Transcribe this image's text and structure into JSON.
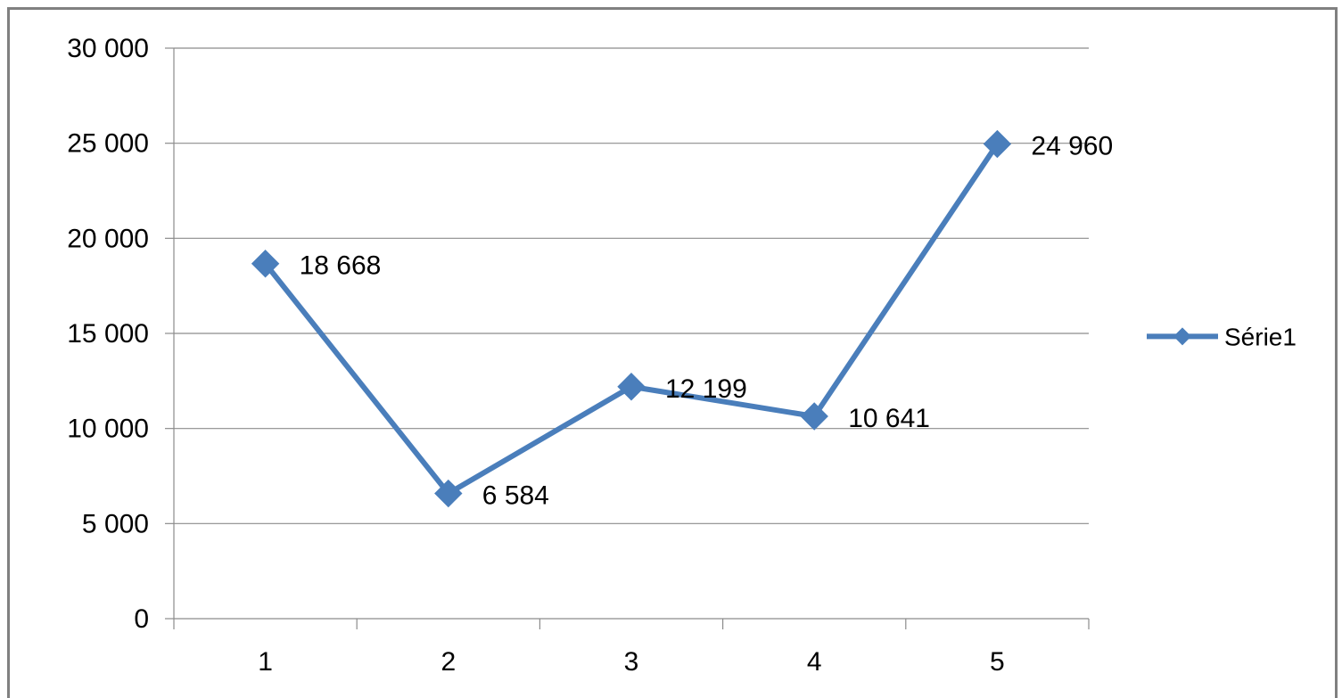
{
  "chart_data": {
    "type": "line",
    "title": "",
    "xlabel": "",
    "ylabel": "",
    "categories": [
      "1",
      "2",
      "3",
      "4",
      "5"
    ],
    "series": [
      {
        "name": "Série1",
        "values": [
          18668,
          6584,
          12199,
          10641,
          24960
        ],
        "color": "#4a7ebb",
        "marker": "diamond"
      }
    ],
    "data_labels": [
      "18 668",
      "6 584",
      "12 199",
      "10 641",
      "24 960"
    ],
    "ylim": [
      0,
      30000
    ],
    "yticks": [
      0,
      5000,
      10000,
      15000,
      20000,
      25000,
      30000
    ],
    "ytick_labels": [
      "0",
      "5 000",
      "10 000",
      "15 000",
      "20 000",
      "25 000",
      "30 000"
    ],
    "grid": "horizontal",
    "legend_position": "right"
  }
}
